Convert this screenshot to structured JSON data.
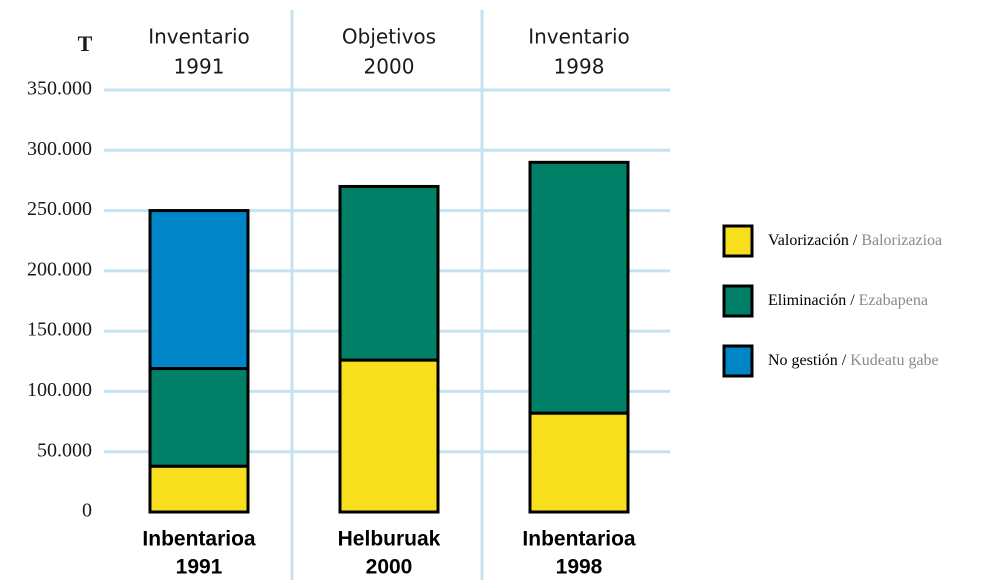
{
  "chart_data": {
    "type": "stacked_bar",
    "y_label": "T",
    "top_labels": [
      [
        "Inventario",
        "1991"
      ],
      [
        "Objetivos",
        "2000"
      ],
      [
        "Inventario",
        "1998"
      ]
    ],
    "categories": [
      [
        "Inbentarioa",
        "1991"
      ],
      [
        "Helburuak",
        "2000"
      ],
      [
        "Inbentarioa",
        "1998"
      ]
    ],
    "series": [
      {
        "name": "Valorización",
        "name_eu": "Balorizazioa",
        "color": "#f7df1e",
        "values": [
          38000,
          126000,
          82000
        ]
      },
      {
        "name": "Eliminación",
        "name_eu": "Ezabapena",
        "color": "#008066",
        "values": [
          81000,
          144000,
          208000
        ]
      },
      {
        "name": "No gestión",
        "name_eu": "Kudeatu gabe",
        "color": "#0085c8",
        "values": [
          131000,
          null,
          null
        ]
      }
    ],
    "legend_separator": "/",
    "ylim": [
      0,
      350000
    ],
    "yticks": [
      0,
      {
        "value": 50000,
        "label": "50.000"
      },
      {
        "value": 100000,
        "label": "100.000"
      },
      {
        "value": 150000,
        "label": "150.000"
      },
      {
        "value": 200000,
        "label": "200.000"
      },
      {
        "value": 250000,
        "label": "250.000"
      },
      {
        "value": 300000,
        "label": "300.000"
      },
      {
        "value": 350000,
        "label": "350.000"
      }
    ],
    "grid": true,
    "legend": "right"
  }
}
